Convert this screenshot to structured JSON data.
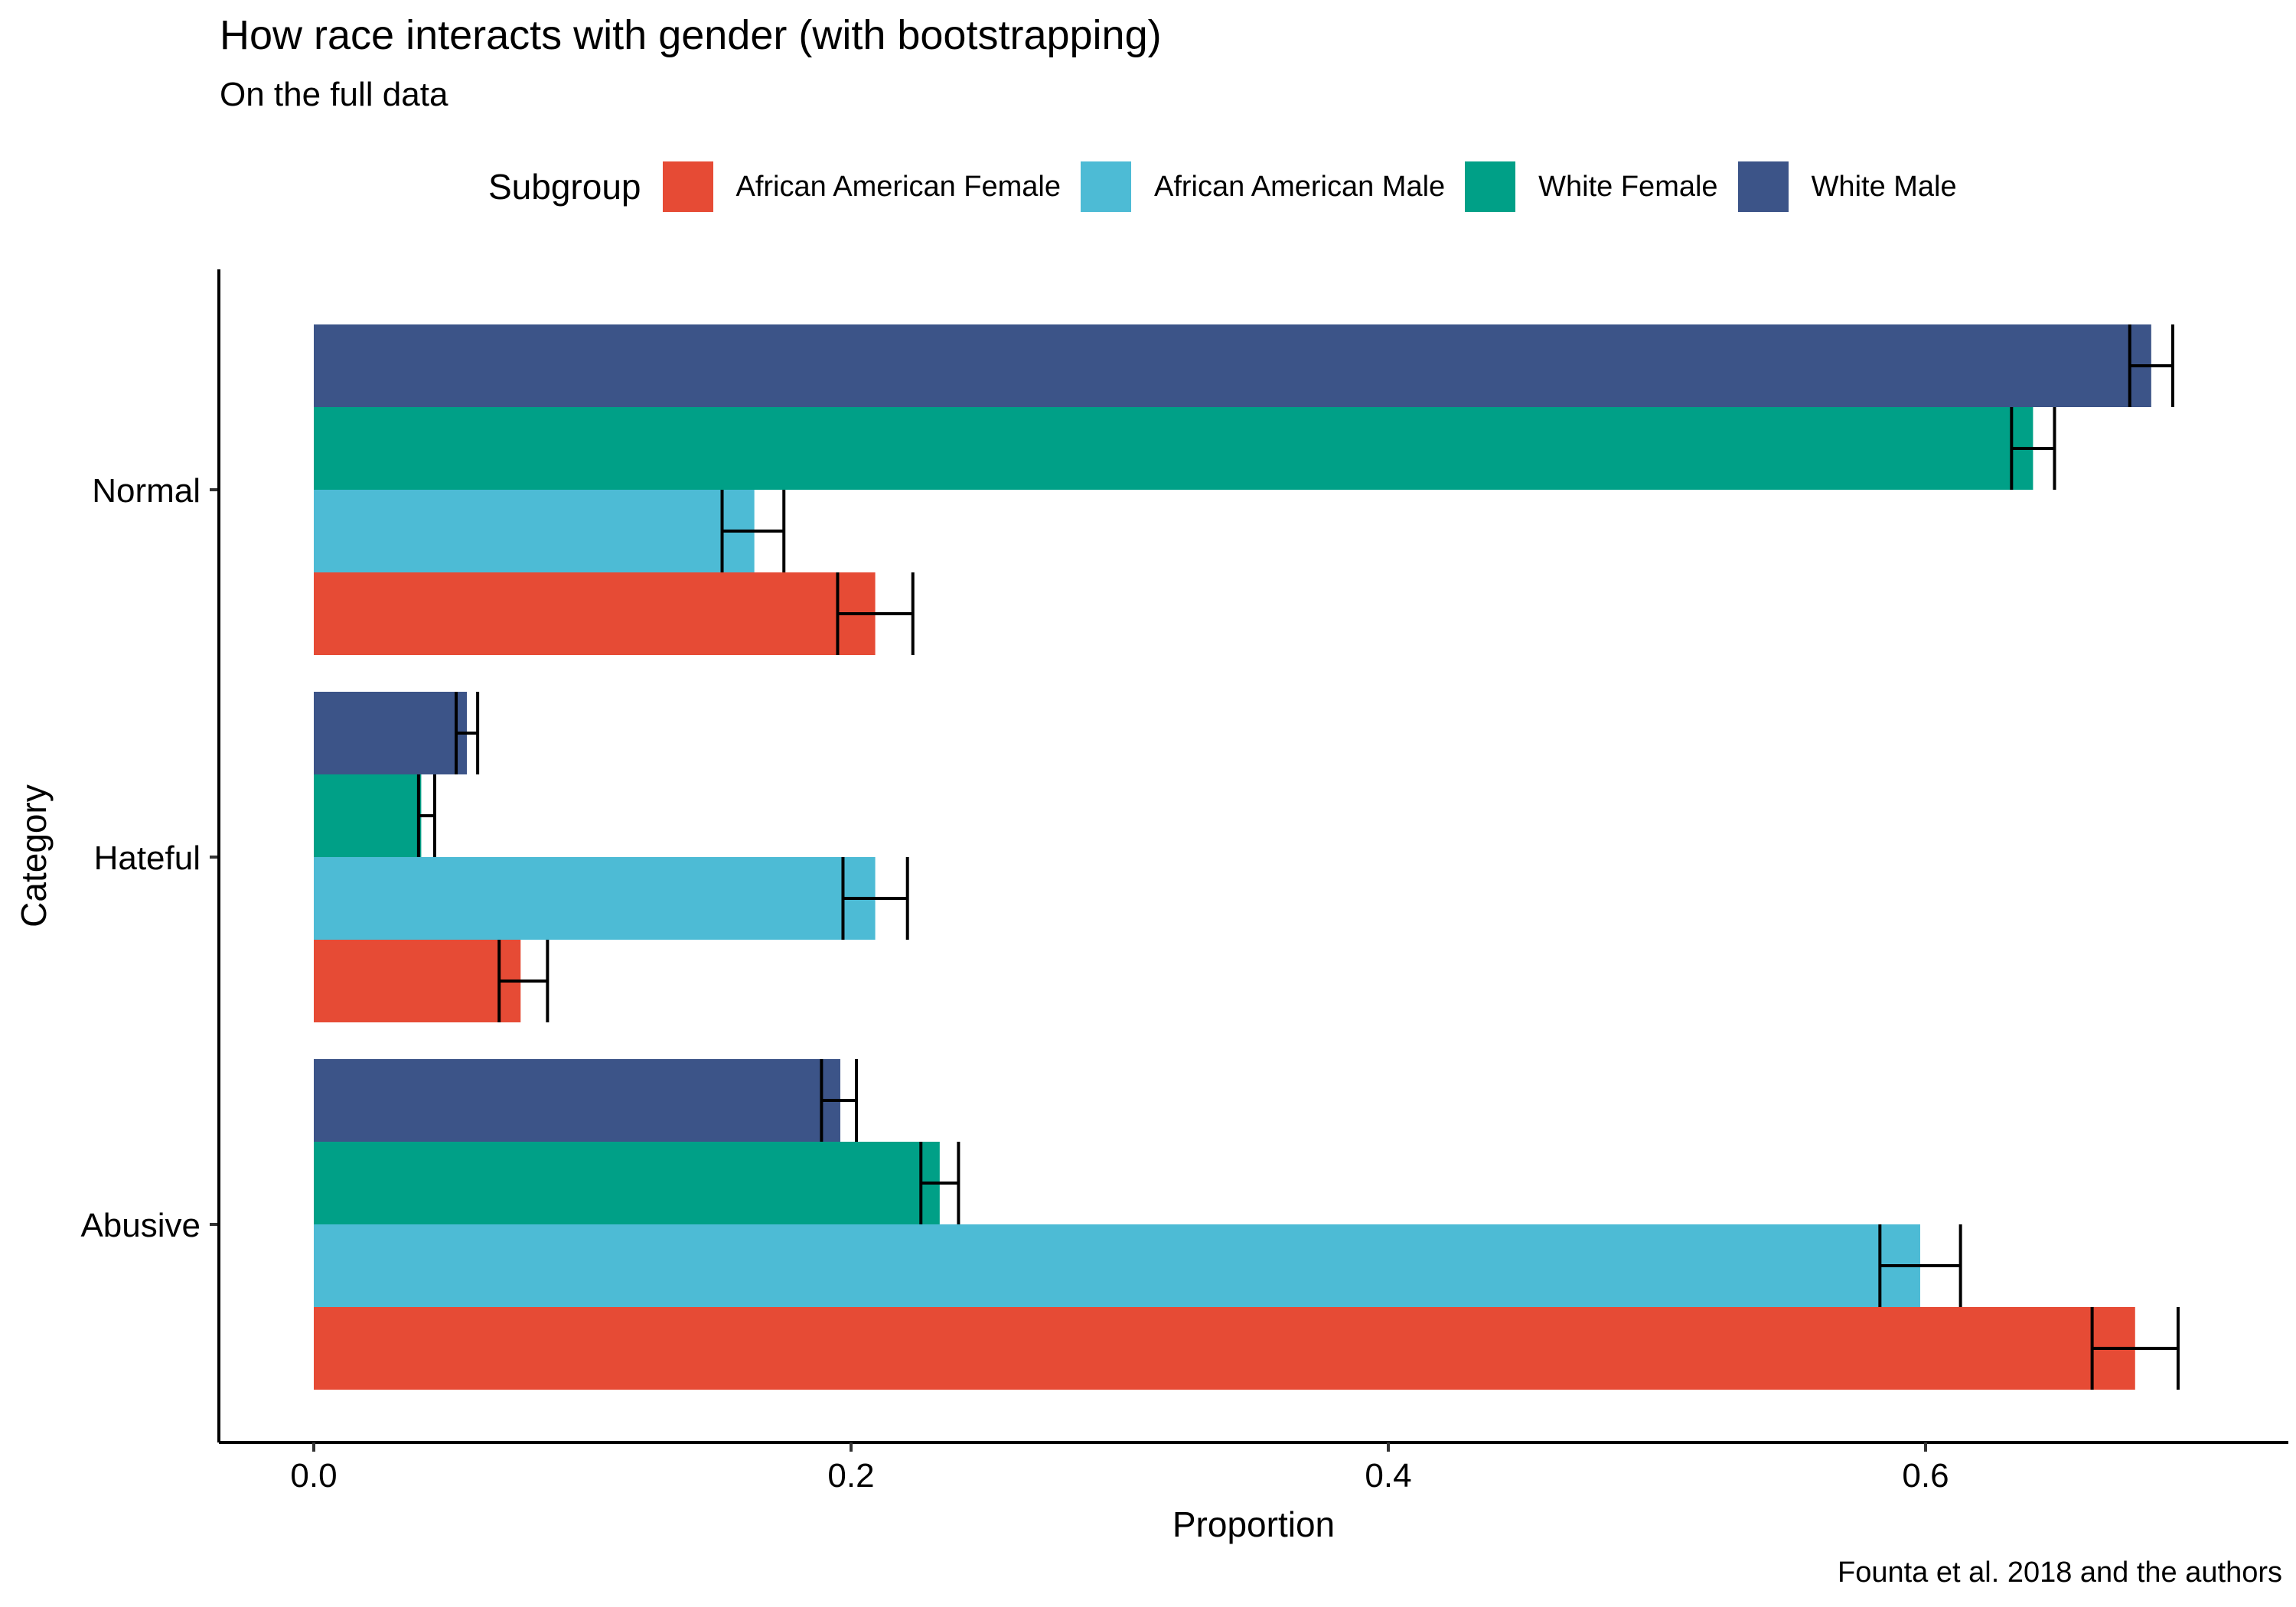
{
  "chart_data": {
    "type": "bar",
    "orientation": "horizontal",
    "title": "How race interacts with gender (with bootstrapping)",
    "subtitle": "On the full data",
    "caption": "Founta et al. 2018 and the authors",
    "xlabel": "Proportion",
    "ylabel": "Category",
    "xlim": [
      -0.035,
      0.735
    ],
    "xticks": [
      0.0,
      0.2,
      0.4,
      0.6
    ],
    "xtick_labels": [
      "0.0",
      "0.2",
      "0.4",
      "0.6"
    ],
    "categories": [
      "Normal",
      "Hateful",
      "Abusive"
    ],
    "grid": false,
    "legend": {
      "title": "Subgroup",
      "position": "top"
    },
    "series": [
      {
        "name": "African American Female",
        "color": "#E64B35",
        "values": [
          0.209,
          0.077,
          0.678
        ],
        "err_low": [
          0.195,
          0.069,
          0.662
        ],
        "err_high": [
          0.223,
          0.087,
          0.694
        ]
      },
      {
        "name": "African American Male",
        "color": "#4DBBD5",
        "values": [
          0.164,
          0.209,
          0.598
        ],
        "err_low": [
          0.152,
          0.197,
          0.583
        ],
        "err_high": [
          0.175,
          0.221,
          0.613
        ]
      },
      {
        "name": "White Female",
        "color": "#00A087",
        "values": [
          0.64,
          0.04,
          0.233
        ],
        "err_low": [
          0.632,
          0.039,
          0.226
        ],
        "err_high": [
          0.648,
          0.045,
          0.24
        ]
      },
      {
        "name": "White Male",
        "color": "#3C5488",
        "values": [
          0.684,
          0.057,
          0.196
        ],
        "err_low": [
          0.676,
          0.053,
          0.189
        ],
        "err_high": [
          0.692,
          0.061,
          0.202
        ]
      }
    ]
  }
}
